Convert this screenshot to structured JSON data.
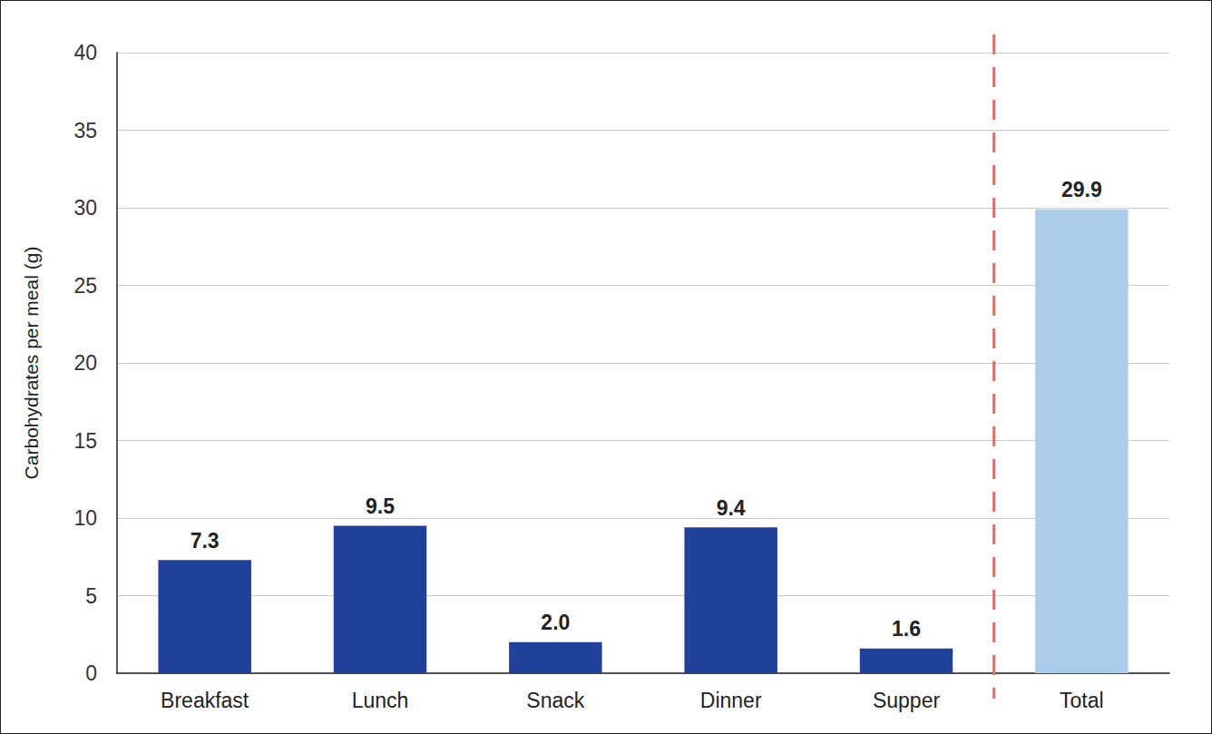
{
  "chart_data": {
    "type": "bar",
    "y_label": "Carbohydrates per meal (g)",
    "categories": [
      "Breakfast",
      "Lunch",
      "Snack",
      "Dinner",
      "Supper",
      "Total"
    ],
    "values": [
      7.3,
      9.5,
      2.0,
      9.4,
      1.6,
      29.9
    ],
    "value_labels": [
      "7.3",
      "9.5",
      "2.0",
      "9.4",
      "1.6",
      "29.9"
    ],
    "colors": [
      "#21409a",
      "#21409a",
      "#21409a",
      "#21409a",
      "#21409a",
      "#abcbea"
    ],
    "ylim": [
      0,
      40
    ],
    "yticks": [
      0,
      5,
      10,
      15,
      20,
      25,
      30,
      35,
      40
    ],
    "grid": true,
    "data_labels": true
  }
}
